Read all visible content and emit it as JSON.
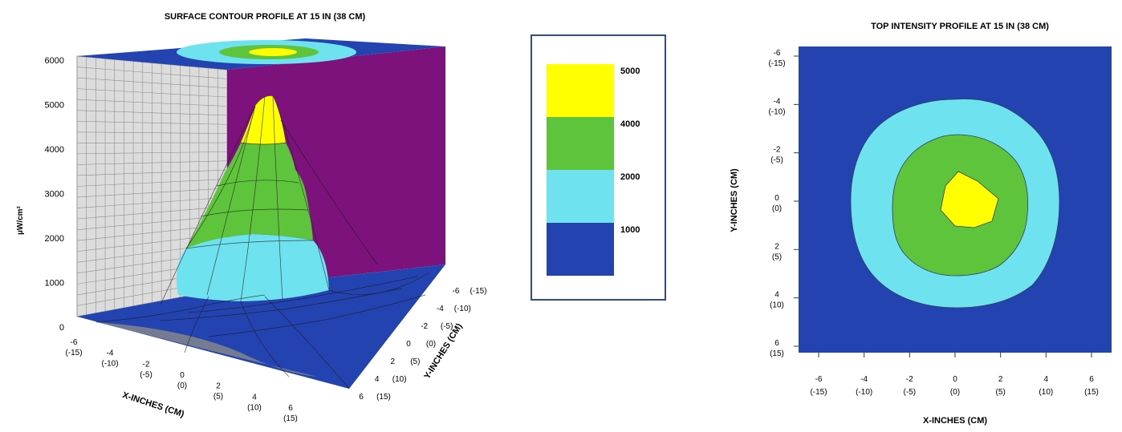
{
  "chart_data": [
    {
      "type": "surface",
      "title": "SURFACE CONTOUR PROFILE AT 15 IN (38 CM)",
      "zlabel": "µW/cm²",
      "xlabel": "X-INCHES (CM)",
      "ylabel": "Y-INCHES (CM)",
      "zlim": [
        0,
        6000
      ],
      "z_ticks": [
        "0",
        "1000",
        "2000",
        "3000",
        "4000",
        "5000",
        "6000"
      ],
      "x_ticks": [
        {
          "in": "-6",
          "cm": "(-15)"
        },
        {
          "in": "-4",
          "cm": "(-10)"
        },
        {
          "in": "-2",
          "cm": "(-5)"
        },
        {
          "in": "0",
          "cm": "(0)"
        },
        {
          "in": "2",
          "cm": "(5)"
        },
        {
          "in": "4",
          "cm": "(10)"
        },
        {
          "in": "6",
          "cm": "(15)"
        }
      ],
      "y_ticks": [
        {
          "in": "-6",
          "cm": "(-15)"
        },
        {
          "in": "-4",
          "cm": "(-10)"
        },
        {
          "in": "-2",
          "cm": "(-5)"
        },
        {
          "in": "0",
          "cm": "(0)"
        },
        {
          "in": "2",
          "cm": "(5)"
        },
        {
          "in": "4",
          "cm": "(10)"
        },
        {
          "in": "6",
          "cm": "(15)"
        }
      ],
      "peak_value": 5600
    },
    {
      "type": "contour",
      "title": "TOP INTENSITY PROFILE AT 15 IN (38 CM)",
      "xlabel": "X-INCHES (CM)",
      "ylabel": "Y-INCHES (CM)",
      "x_ticks": [
        {
          "in": "-6",
          "cm": "(-15)"
        },
        {
          "in": "-4",
          "cm": "(-10)"
        },
        {
          "in": "-2",
          "cm": "(-5)"
        },
        {
          "in": "0",
          "cm": "(0)"
        },
        {
          "in": "2",
          "cm": "(5)"
        },
        {
          "in": "4",
          "cm": "(10)"
        },
        {
          "in": "6",
          "cm": "(15)"
        }
      ],
      "y_ticks": [
        {
          "in": "-6",
          "cm": "(-15)"
        },
        {
          "in": "-4",
          "cm": "(-10)"
        },
        {
          "in": "-2",
          "cm": "(-5)"
        },
        {
          "in": "0",
          "cm": "(0)"
        },
        {
          "in": "2",
          "cm": "(5)"
        },
        {
          "in": "4",
          "cm": "(10)"
        },
        {
          "in": "6",
          "cm": "(15)"
        }
      ]
    }
  ],
  "legend": {
    "bands": [
      {
        "label": "5000",
        "color": "#ffff00"
      },
      {
        "label": "4000",
        "color": "#5ec43c"
      },
      {
        "label": "2000",
        "color": "#6fe2ef"
      },
      {
        "label": "1000",
        "color": "#2344b0"
      }
    ]
  },
  "colors": {
    "level_0_band": "#2344b0",
    "level_1000_band": "#6fe2ef",
    "level_2000_band": "#5ec43c",
    "level_4000_band": "#ffff00",
    "back_wall": "#7d127d",
    "grid_wall": "#dcdcdc",
    "floor_shadow": "#8a8a8a"
  }
}
